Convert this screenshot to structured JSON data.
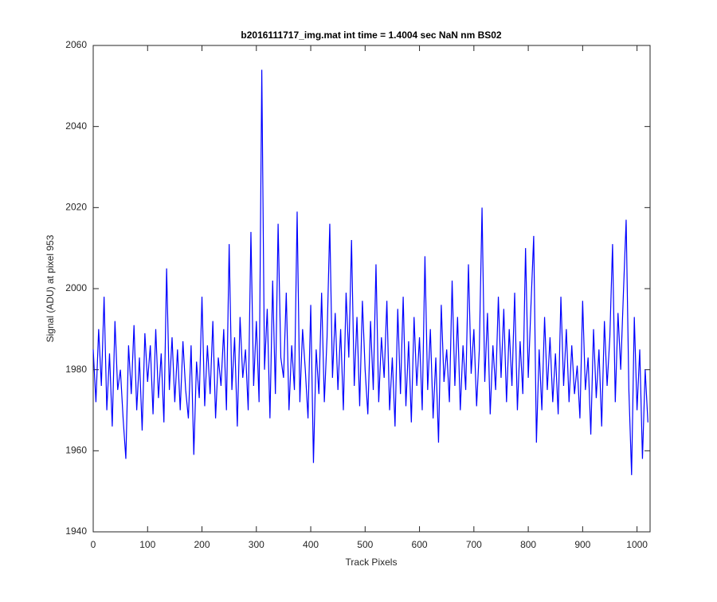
{
  "chart_data": {
    "type": "line",
    "title": "b2016111717_img.mat int time = 1.4004 sec  NaN nm BS02",
    "x_label": "Track Pixels",
    "y_label": "Signal (ADU) at pixel 953",
    "x": [
      0,
      5,
      10,
      15,
      20,
      25,
      30,
      35,
      40,
      45,
      50,
      55,
      60,
      65,
      70,
      75,
      80,
      85,
      90,
      95,
      100,
      105,
      110,
      115,
      120,
      125,
      130,
      135,
      140,
      145,
      150,
      155,
      160,
      165,
      170,
      175,
      180,
      185,
      190,
      195,
      200,
      205,
      210,
      215,
      220,
      225,
      230,
      235,
      240,
      245,
      250,
      255,
      260,
      265,
      270,
      275,
      280,
      285,
      290,
      295,
      300,
      305,
      310,
      315,
      320,
      325,
      330,
      335,
      340,
      345,
      350,
      355,
      360,
      365,
      370,
      375,
      380,
      385,
      390,
      395,
      400,
      405,
      410,
      415,
      420,
      425,
      430,
      435,
      440,
      445,
      450,
      455,
      460,
      465,
      470,
      475,
      480,
      485,
      490,
      495,
      500,
      505,
      510,
      515,
      520,
      525,
      530,
      535,
      540,
      545,
      550,
      555,
      560,
      565,
      570,
      575,
      580,
      585,
      590,
      595,
      600,
      605,
      610,
      615,
      620,
      625,
      630,
      635,
      640,
      645,
      650,
      655,
      660,
      665,
      670,
      675,
      680,
      685,
      690,
      695,
      700,
      705,
      710,
      715,
      720,
      725,
      730,
      735,
      740,
      745,
      750,
      755,
      760,
      765,
      770,
      775,
      780,
      785,
      790,
      795,
      800,
      805,
      810,
      815,
      820,
      825,
      830,
      835,
      840,
      845,
      850,
      855,
      860,
      865,
      870,
      875,
      880,
      885,
      890,
      895,
      900,
      905,
      910,
      915,
      920,
      925,
      930,
      935,
      940,
      945,
      950,
      955,
      960,
      965,
      970,
      975,
      980,
      985,
      990,
      995,
      1000,
      1005,
      1010,
      1015,
      1020
    ],
    "series": [
      {
        "color": "#0000ff",
        "values": [
          1985,
          1972,
          1990,
          1976,
          1998,
          1970,
          1984,
          1966,
          1992,
          1975,
          1980,
          1968,
          1958,
          1986,
          1974,
          1991,
          1970,
          1983,
          1965,
          1989,
          1977,
          1986,
          1969,
          1990,
          1973,
          1984,
          1967,
          2005,
          1975,
          1988,
          1972,
          1985,
          1970,
          1987,
          1975,
          1968,
          1986,
          1959,
          1982,
          1973,
          1998,
          1971,
          1986,
          1974,
          1992,
          1968,
          1983,
          1976,
          1990,
          1970,
          2011,
          1975,
          1988,
          1966,
          1993,
          1978,
          1985,
          1970,
          2014,
          1976,
          1992,
          1972,
          2054,
          1980,
          1995,
          1968,
          2002,
          1974,
          2016,
          1983,
          1978,
          1999,
          1970,
          1986,
          1975,
          2019,
          1972,
          1990,
          1980,
          1968,
          1996,
          1957,
          1985,
          1974,
          1999,
          1972,
          1988,
          2016,
          1978,
          1994,
          1975,
          1990,
          1970,
          1999,
          1983,
          2012,
          1976,
          1993,
          1971,
          1997,
          1980,
          1969,
          1992,
          1975,
          2006,
          1972,
          1988,
          1978,
          1997,
          1970,
          1983,
          1966,
          1995,
          1974,
          1998,
          1971,
          1987,
          1967,
          1993,
          1976,
          1988,
          1970,
          2008,
          1975,
          1990,
          1968,
          1983,
          1962,
          1996,
          1977,
          1985,
          1972,
          2002,
          1976,
          1993,
          1970,
          1986,
          1975,
          2006,
          1979,
          1990,
          1971,
          1985,
          2020,
          1977,
          1994,
          1969,
          1986,
          1975,
          1998,
          1978,
          1995,
          1972,
          1990,
          1976,
          1999,
          1970,
          1987,
          1974,
          2010,
          1978,
          1996,
          2013,
          1962,
          1985,
          1970,
          1993,
          1975,
          1988,
          1972,
          1984,
          1969,
          1998,
          1976,
          1990,
          1972,
          1986,
          1974,
          1981,
          1968,
          1997,
          1975,
          1983,
          1964,
          1990,
          1973,
          1985,
          1966,
          1992,
          1976,
          1988,
          2011,
          1972,
          1994,
          1980,
          1999,
          2017,
          1975,
          1954,
          1993,
          1970,
          1985,
          1958,
          1980,
          1967
        ]
      }
    ],
    "xlim": [
      0,
      1024
    ],
    "xticks": [
      0,
      100,
      200,
      300,
      400,
      500,
      600,
      700,
      800,
      900,
      1000
    ],
    "ylim": [
      1940,
      2060
    ],
    "yticks": [
      1940,
      1960,
      1980,
      2000,
      2020,
      2040,
      2060
    ]
  }
}
